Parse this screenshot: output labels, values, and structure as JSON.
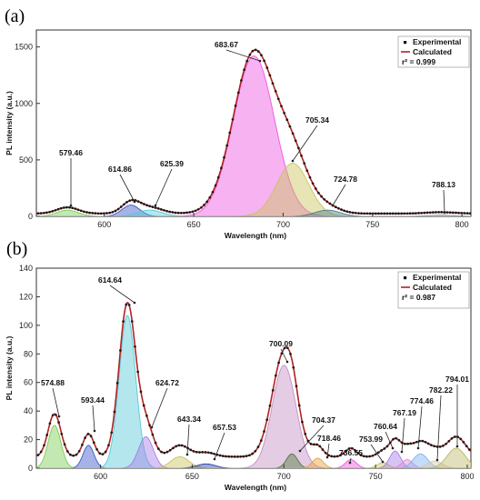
{
  "chart_data": [
    {
      "panel_label": "(a)",
      "type": "line",
      "xlabel": "Wavelength (nm)",
      "ylabel": "PL intensity (a.u.)",
      "xlim": [
        562,
        805
      ],
      "ylim": [
        0,
        1650
      ],
      "x_ticks": [
        600,
        650,
        700,
        750,
        800
      ],
      "y_ticks": [
        0,
        500,
        1000,
        1500
      ],
      "legend": {
        "position": "top-right",
        "entries": [
          "Experimental",
          "Calculated"
        ],
        "r2_text": "r² = 0.999"
      },
      "series_colors": {
        "experimental": "#1a1a1a",
        "calculated": "#b22222"
      },
      "baseline": 25,
      "peaks": [
        {
          "center": 579.46,
          "label": "579.46",
          "amplitude": 55,
          "sigma": 6,
          "color": "#7ccd52"
        },
        {
          "center": 614.86,
          "label": "614.86",
          "amplitude": 100,
          "sigma": 5,
          "color": "#3a57c7"
        },
        {
          "center": 625.39,
          "label": "625.39",
          "amplitude": 55,
          "sigma": 7,
          "color": "#56c9d6"
        },
        {
          "center": 683.67,
          "label": "683.67",
          "amplitude": 1420,
          "sigma": 11.5,
          "color": "#ee55e0"
        },
        {
          "center": 705.34,
          "label": "705.34",
          "amplitude": 470,
          "sigma": 9,
          "color": "#c9c35e"
        },
        {
          "center": 724.78,
          "label": "724.78",
          "amplitude": 55,
          "sigma": 7,
          "color": "#4a7c8a"
        },
        {
          "center": 788.13,
          "label": "788.13",
          "amplitude": 12,
          "sigma": 8,
          "color": "#9fa8b0"
        }
      ]
    },
    {
      "panel_label": "(b)",
      "type": "line",
      "xlabel": "Wavelength (nm)",
      "ylabel": "PL intensity (a.u.)",
      "xlim": [
        565,
        802
      ],
      "ylim": [
        0,
        140
      ],
      "x_ticks": [
        600,
        650,
        700,
        750,
        800
      ],
      "y_ticks": [
        0,
        20,
        40,
        60,
        80,
        100,
        120,
        140
      ],
      "legend": {
        "position": "top-right",
        "entries": [
          "Experimental",
          "Calculated"
        ],
        "r2_text": "r² = 0.987"
      },
      "series_colors": {
        "experimental": "#1a1a1a",
        "calculated": "#b22222"
      },
      "baseline": 8,
      "peaks": [
        {
          "center": 574.88,
          "label": "574.88",
          "amplitude": 30,
          "sigma": 3.5,
          "color": "#7ccd52"
        },
        {
          "center": 593.44,
          "label": "593.44",
          "amplitude": 16,
          "sigma": 3,
          "color": "#3a57c7"
        },
        {
          "center": 614.64,
          "label": "614.64",
          "amplitude": 107,
          "sigma": 4.5,
          "color": "#56c9d6"
        },
        {
          "center": 624.72,
          "label": "624.72",
          "amplitude": 22,
          "sigma": 4,
          "color": "#a77ce6"
        },
        {
          "center": 643.34,
          "label": "643.34",
          "amplitude": 8,
          "sigma": 5,
          "color": "#c9c35e"
        },
        {
          "center": 657.53,
          "label": "657.53",
          "amplitude": 3,
          "sigma": 5,
          "color": "#2b3f9e"
        },
        {
          "center": 700.09,
          "label": "700.09",
          "amplitude": 72,
          "sigma": 6.5,
          "color": "#c48fc6"
        },
        {
          "center": 704.37,
          "label": "704.37",
          "amplitude": 10,
          "sigma": 3,
          "color": "#4f7a3c"
        },
        {
          "center": 718.46,
          "label": "718.46",
          "amplitude": 7,
          "sigma": 3,
          "color": "#e8a23a"
        },
        {
          "center": 736.55,
          "label": "736.55",
          "amplitude": 6,
          "sigma": 3,
          "color": "#ee55e0"
        },
        {
          "center": 753.99,
          "label": "753.99",
          "amplitude": 4,
          "sigma": 3,
          "color": "#c9c35e"
        },
        {
          "center": 760.64,
          "label": "760.64",
          "amplitude": 12,
          "sigma": 3,
          "color": "#a77ce6"
        },
        {
          "center": 767.19,
          "label": "767.19",
          "amplitude": 6,
          "sigma": 3,
          "color": "#e08ad8"
        },
        {
          "center": 774.46,
          "label": "774.46",
          "amplitude": 10,
          "sigma": 4,
          "color": "#7fb2f0"
        },
        {
          "center": 782.22,
          "label": "782.22",
          "amplitude": 5,
          "sigma": 4,
          "color": "#d6c9a8"
        },
        {
          "center": 794.01,
          "label": "794.01",
          "amplitude": 14,
          "sigma": 5,
          "color": "#bdb76b"
        }
      ]
    }
  ]
}
